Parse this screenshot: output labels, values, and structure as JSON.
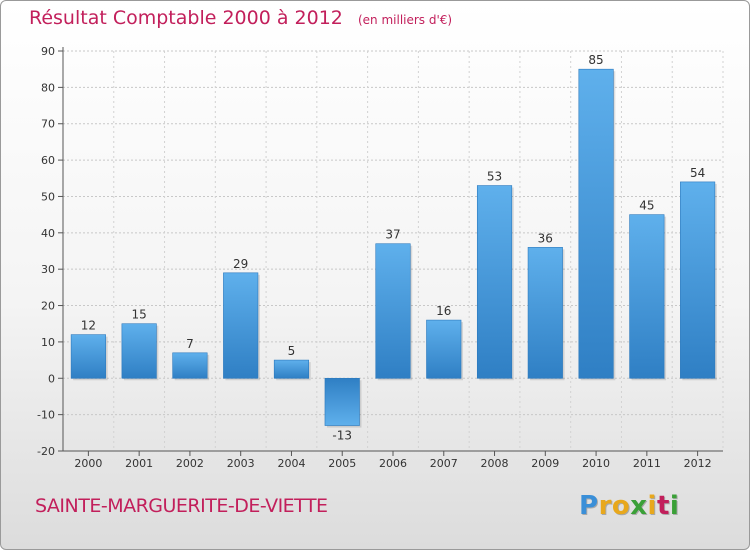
{
  "chart_data": {
    "type": "bar",
    "title": "Résultat Comptable 2000 à 2012",
    "unit_label": "(en milliers d'€)",
    "categories": [
      "2000",
      "2001",
      "2002",
      "2003",
      "2004",
      "2005",
      "2006",
      "2007",
      "2008",
      "2009",
      "2010",
      "2011",
      "2012"
    ],
    "values": [
      12,
      15,
      7,
      29,
      5,
      -13,
      37,
      16,
      53,
      36,
      85,
      45,
      54
    ],
    "data_labels": [
      "12",
      "15",
      "7",
      "29",
      "5",
      "-13",
      "37",
      "16",
      "53",
      "36",
      "85",
      "45",
      "54"
    ],
    "ylim": [
      -20,
      90
    ],
    "yticks": [
      -20,
      -10,
      0,
      10,
      20,
      30,
      40,
      50,
      60,
      70,
      80,
      90
    ],
    "ytick_labels": [
      "-20",
      "-10",
      "0",
      "10",
      "20",
      "30",
      "40",
      "50",
      "60",
      "70",
      "80",
      "90"
    ],
    "xlabel": "",
    "ylabel": "",
    "grid": true,
    "bar_color": "#3d8fd6"
  },
  "commune_name": "SAINTE-MARGUERITE-DE-VIETTE",
  "logo": {
    "letters": [
      "P",
      "r",
      "o",
      "x",
      "i",
      "t",
      "i"
    ],
    "colors": [
      "#3a8fd8",
      "#e8a81c",
      "#e8a81c",
      "#3aa037",
      "#e8a81c",
      "#c21f5b",
      "#3aa037"
    ]
  }
}
